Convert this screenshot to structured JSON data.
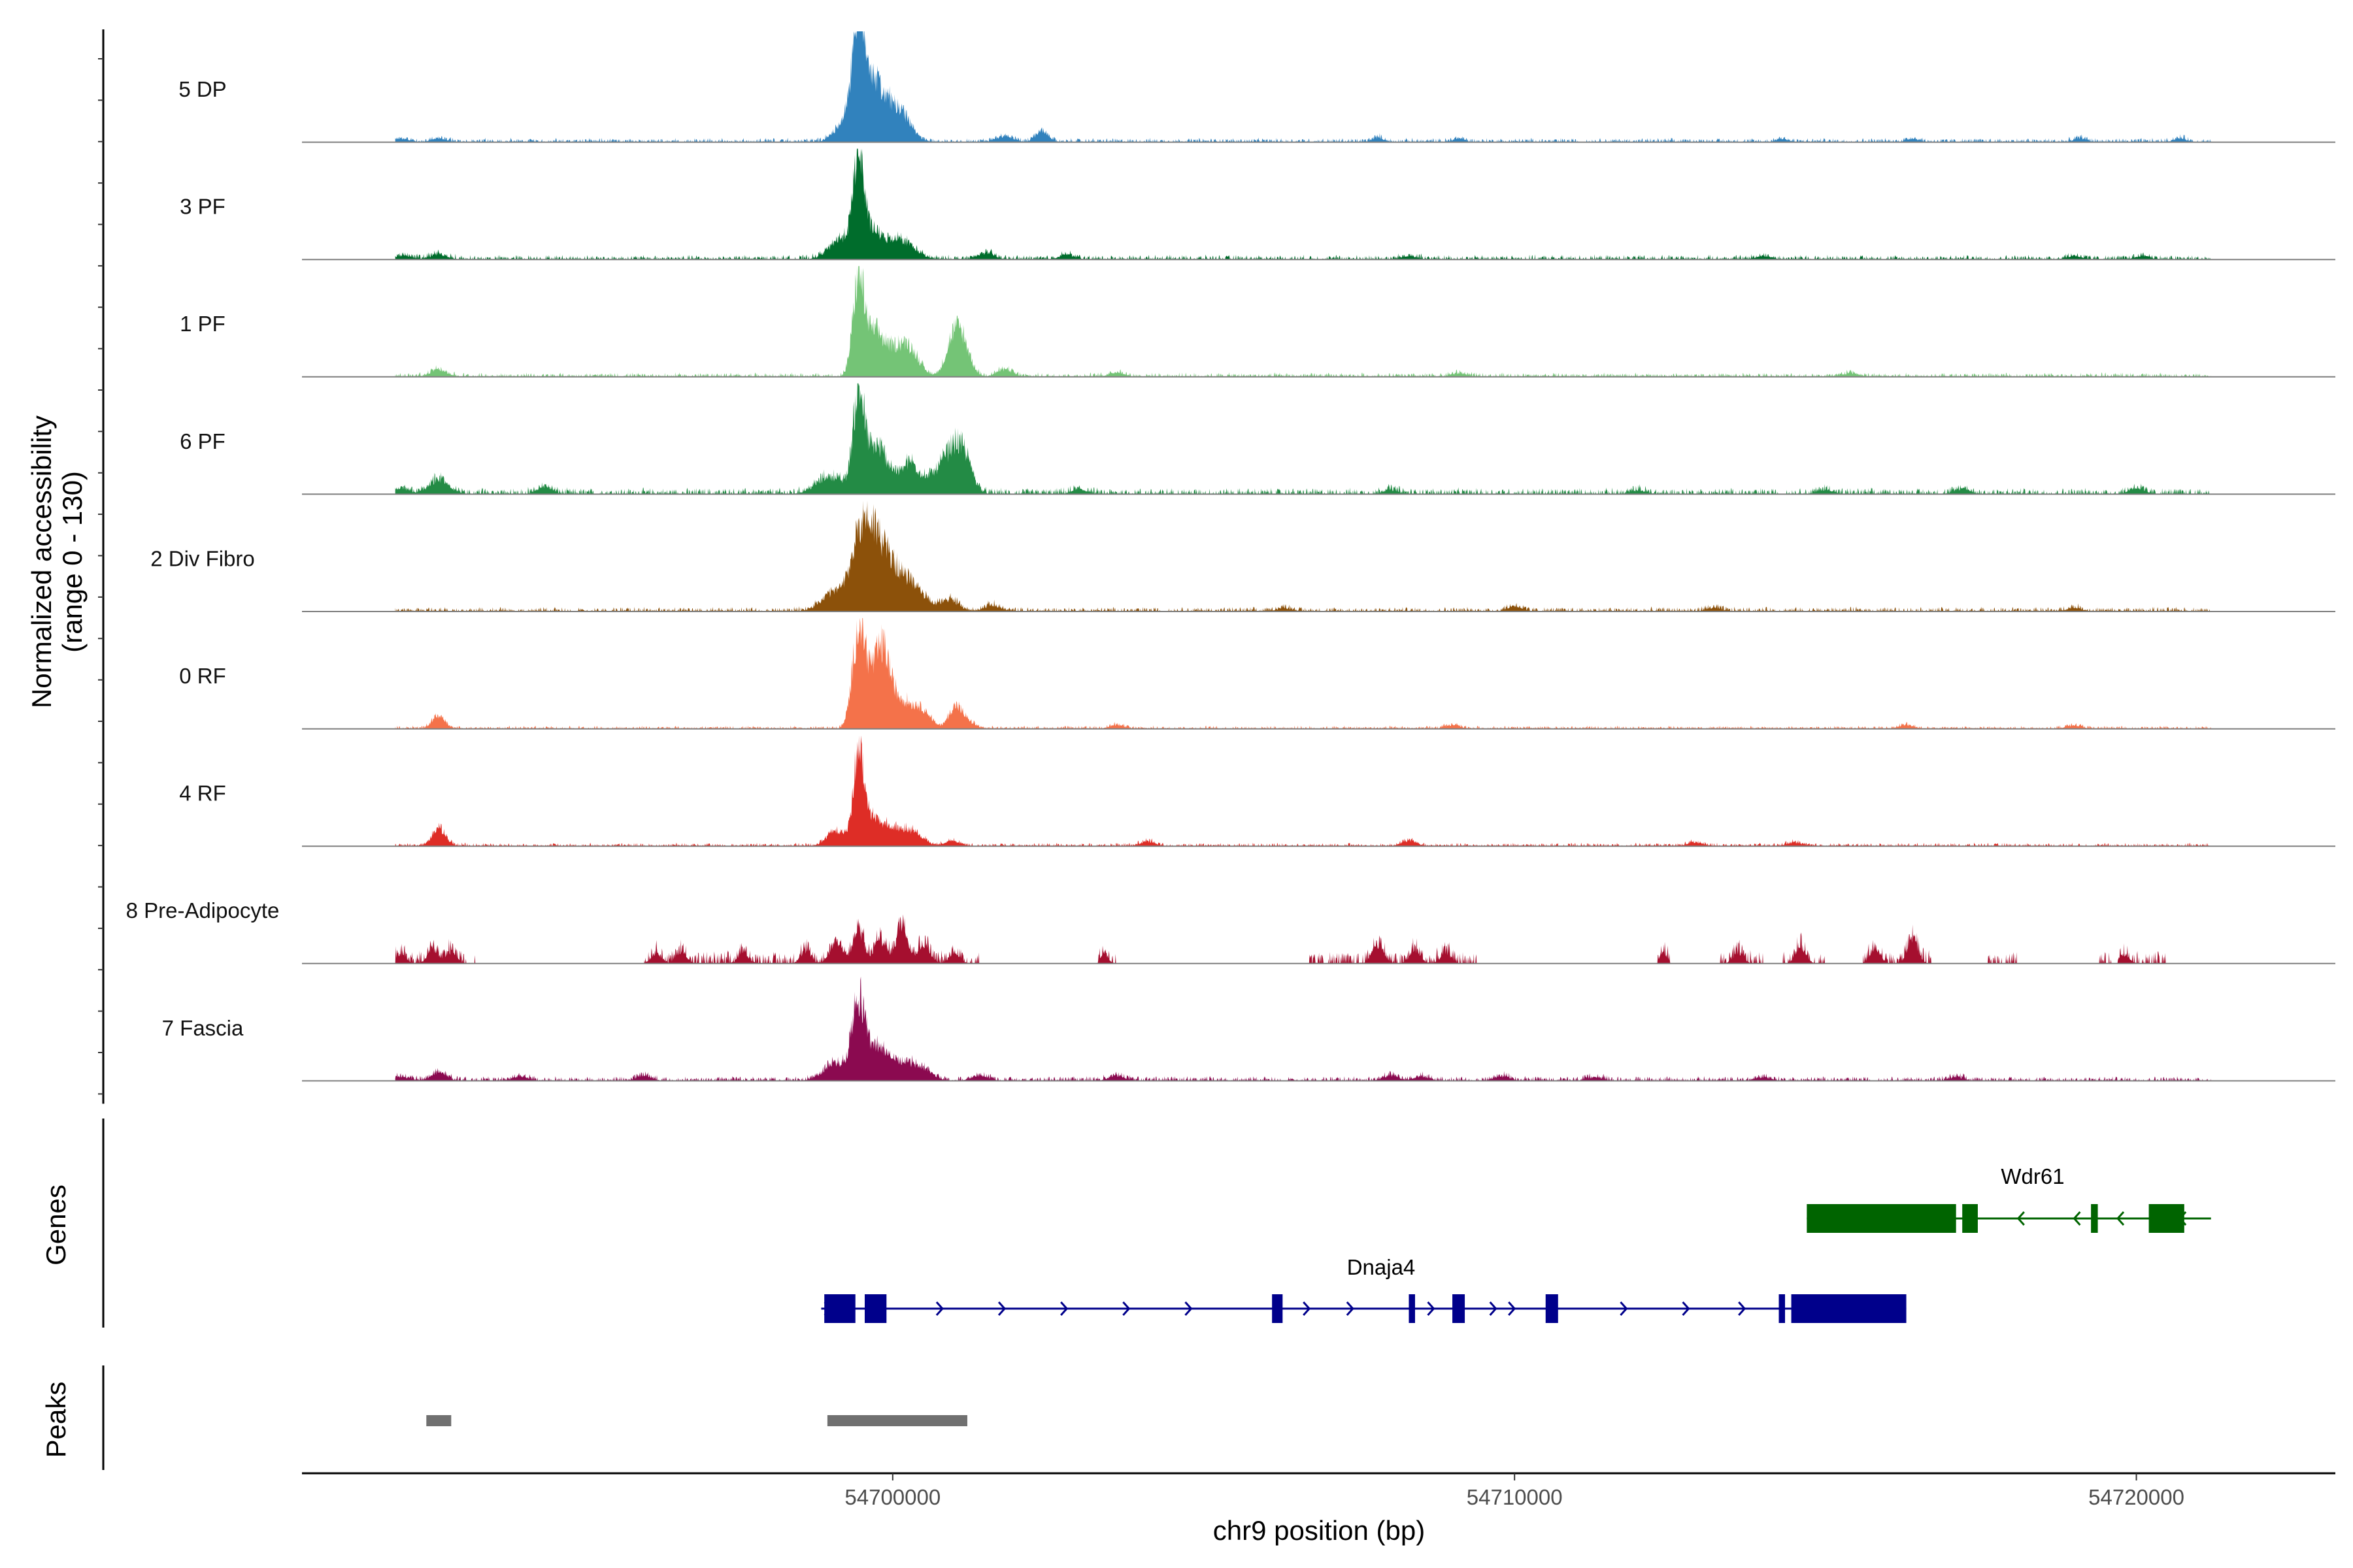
{
  "chart_data": {
    "type": "area",
    "title": "",
    "ylabel_line1": "Normalized accessibility",
    "ylabel_line2": "(range 0 - 130)",
    "ylim": [
      0,
      130
    ],
    "xlabel": "chr9 position (bp)",
    "xlim": [
      54690500,
      54723200
    ],
    "xticks": [
      54700000,
      54710000,
      54720000
    ],
    "xtick_labels": [
      "54700000",
      "54710000",
      "54720000"
    ],
    "coverage_tracks": [
      {
        "name": "5 DP",
        "color": "#3182bd",
        "peaks": [
          [
            54692100,
            4,
            120
          ],
          [
            54692700,
            4,
            120
          ],
          [
            54699300,
            30,
            180
          ],
          [
            54699450,
            120,
            90
          ],
          [
            54699650,
            60,
            160
          ],
          [
            54699950,
            35,
            200
          ],
          [
            54700200,
            15,
            150
          ],
          [
            54701800,
            7,
            130
          ],
          [
            54702400,
            12,
            100
          ],
          [
            54707800,
            5,
            90
          ],
          [
            54709100,
            4,
            90
          ],
          [
            54714300,
            4,
            90
          ],
          [
            54716400,
            4,
            100
          ],
          [
            54719100,
            4,
            100
          ],
          [
            54720700,
            4,
            100
          ]
        ],
        "noise": 2.0,
        "gaps": []
      },
      {
        "name": "3 PF",
        "color": "#006d2c",
        "peaks": [
          [
            54692100,
            4,
            150
          ],
          [
            54692700,
            6,
            130
          ],
          [
            54699200,
            25,
            200
          ],
          [
            54699450,
            110,
            80
          ],
          [
            54699650,
            30,
            150
          ],
          [
            54700100,
            24,
            220
          ],
          [
            54701500,
            7,
            130
          ],
          [
            54702800,
            5,
            120
          ],
          [
            54708300,
            4,
            120
          ],
          [
            54714000,
            4,
            120
          ],
          [
            54719000,
            4,
            120
          ],
          [
            54720100,
            4,
            120
          ]
        ],
        "noise": 2.2,
        "gaps": []
      },
      {
        "name": "1 PF",
        "color": "#74c476",
        "peaks": [
          [
            54692700,
            8,
            130
          ],
          [
            54699450,
            110,
            90
          ],
          [
            54699700,
            48,
            140
          ],
          [
            54700050,
            30,
            180
          ],
          [
            54700300,
            22,
            150
          ],
          [
            54701000,
            45,
            130
          ],
          [
            54701150,
            22,
            120
          ],
          [
            54701800,
            8,
            130
          ],
          [
            54703600,
            5,
            120
          ],
          [
            54709100,
            4,
            120
          ],
          [
            54715400,
            4,
            120
          ]
        ],
        "noise": 2.0,
        "gaps": []
      },
      {
        "name": "6 PF",
        "color": "#238b45",
        "peaks": [
          [
            54692100,
            6,
            120
          ],
          [
            54692700,
            16,
            160
          ],
          [
            54694400,
            8,
            120
          ],
          [
            54699000,
            20,
            220
          ],
          [
            54699450,
            110,
            90
          ],
          [
            54699700,
            38,
            150
          ],
          [
            54699900,
            25,
            200
          ],
          [
            54700300,
            32,
            130
          ],
          [
            54700700,
            22,
            160
          ],
          [
            54701000,
            50,
            150
          ],
          [
            54701200,
            22,
            120
          ],
          [
            54703000,
            5,
            120
          ],
          [
            54708000,
            5,
            120
          ],
          [
            54712000,
            4,
            120
          ],
          [
            54715000,
            5,
            120
          ],
          [
            54717200,
            6,
            120
          ],
          [
            54720000,
            7,
            120
          ]
        ],
        "noise": 3.0,
        "gaps": []
      },
      {
        "name": "2 Div Fibro",
        "color": "#8c510a",
        "peaks": [
          [
            54699100,
            22,
            220
          ],
          [
            54699500,
            85,
            150
          ],
          [
            54699750,
            55,
            160
          ],
          [
            54700000,
            40,
            200
          ],
          [
            54700350,
            25,
            170
          ],
          [
            54700900,
            14,
            150
          ],
          [
            54701600,
            7,
            130
          ],
          [
            54706300,
            4,
            120
          ],
          [
            54710000,
            6,
            120
          ],
          [
            54713200,
            4,
            120
          ],
          [
            54719000,
            4,
            120
          ]
        ],
        "noise": 2.2,
        "gaps": []
      },
      {
        "name": "0 RF",
        "color": "#f4724a",
        "peaks": [
          [
            54692700,
            15,
            100
          ],
          [
            54699450,
            100,
            100
          ],
          [
            54699650,
            50,
            150
          ],
          [
            54699850,
            65,
            110
          ],
          [
            54700100,
            32,
            170
          ],
          [
            54700450,
            22,
            150
          ],
          [
            54701000,
            25,
            100
          ],
          [
            54701200,
            8,
            120
          ],
          [
            54703600,
            4,
            120
          ],
          [
            54709000,
            4,
            120
          ],
          [
            54716300,
            4,
            120
          ],
          [
            54719000,
            4,
            120
          ]
        ],
        "noise": 1.5,
        "gaps": []
      },
      {
        "name": "4 RF",
        "color": "#de2d26",
        "peaks": [
          [
            54692700,
            20,
            110
          ],
          [
            54699100,
            18,
            150
          ],
          [
            54699450,
            105,
            80
          ],
          [
            54699650,
            30,
            150
          ],
          [
            54700000,
            20,
            200
          ],
          [
            54700350,
            12,
            150
          ],
          [
            54700950,
            6,
            120
          ],
          [
            54704100,
            5,
            120
          ],
          [
            54708300,
            6,
            120
          ],
          [
            54712900,
            4,
            120
          ],
          [
            54714500,
            4,
            120
          ]
        ],
        "noise": 1.6,
        "gaps": []
      },
      {
        "name": "8 Pre-Adipocyte",
        "color": "#a50f2f",
        "peaks": [
          [
            54692100,
            10,
            80
          ],
          [
            54692600,
            18,
            80
          ],
          [
            54692900,
            14,
            80
          ],
          [
            54696200,
            12,
            80
          ],
          [
            54696600,
            14,
            80
          ],
          [
            54697600,
            12,
            80
          ],
          [
            54698600,
            14,
            80
          ],
          [
            54699100,
            26,
            100
          ],
          [
            54699450,
            40,
            80
          ],
          [
            54699800,
            26,
            100
          ],
          [
            54700150,
            48,
            90
          ],
          [
            54700500,
            22,
            100
          ],
          [
            54701000,
            12,
            80
          ],
          [
            54703400,
            12,
            60
          ],
          [
            54707800,
            22,
            90
          ],
          [
            54708400,
            16,
            80
          ],
          [
            54708900,
            12,
            80
          ],
          [
            54712400,
            12,
            60
          ],
          [
            54713600,
            12,
            80
          ],
          [
            54714600,
            18,
            80
          ],
          [
            54715800,
            16,
            80
          ],
          [
            54716400,
            30,
            80
          ],
          [
            54719800,
            10,
            80
          ]
        ],
        "noise": 6.0,
        "gaps": [
          [
            54691000,
            54692000
          ],
          [
            54693300,
            54696000
          ],
          [
            54701400,
            54703300
          ],
          [
            54703600,
            54706700
          ],
          [
            54709400,
            54712300
          ],
          [
            54712500,
            54713300
          ],
          [
            54714000,
            54714300
          ],
          [
            54715000,
            54715600
          ],
          [
            54716700,
            54717600
          ],
          [
            54718100,
            54719400
          ],
          [
            54719600,
            54719700
          ],
          [
            54720500,
            54722000
          ]
        ]
      },
      {
        "name": "7 Fascia",
        "color": "#8b0a50",
        "peaks": [
          [
            54692100,
            4,
            150
          ],
          [
            54692700,
            10,
            120
          ],
          [
            54694000,
            5,
            120
          ],
          [
            54696000,
            6,
            120
          ],
          [
            54699100,
            20,
            200
          ],
          [
            54699450,
            90,
            100
          ],
          [
            54699750,
            40,
            150
          ],
          [
            54700150,
            22,
            180
          ],
          [
            54700500,
            12,
            150
          ],
          [
            54701400,
            6,
            130
          ],
          [
            54703600,
            6,
            120
          ],
          [
            54708000,
            6,
            120
          ],
          [
            54708500,
            5,
            120
          ],
          [
            54709800,
            5,
            120
          ],
          [
            54711300,
            4,
            120
          ],
          [
            54714000,
            4,
            120
          ],
          [
            54717100,
            4,
            120
          ]
        ],
        "noise": 2.2,
        "gaps": []
      }
    ],
    "genes_track": {
      "label": "Genes",
      "genes": [
        {
          "name": "Wdr61",
          "strand": "-",
          "color": "#006400",
          "start": 54714700,
          "end": 54721200,
          "exons": [
            [
              54714700,
              54717100
            ],
            [
              54717200,
              54717450
            ],
            [
              54719270,
              54719380
            ],
            [
              54720200,
              54720770
            ]
          ],
          "arrows": [
            54718100,
            54719000,
            54719700,
            54720700
          ]
        },
        {
          "name": "Dnaja4",
          "strand": "+",
          "color": "#00008b",
          "start": 54698850,
          "end": 54716300,
          "exons": [
            [
              54698900,
              54699400
            ],
            [
              54699550,
              54699900
            ],
            [
              54706100,
              54706270
            ],
            [
              54708300,
              54708400
            ],
            [
              54709000,
              54709200
            ],
            [
              54710500,
              54710700
            ],
            [
              54714250,
              54714350
            ],
            [
              54714450,
              54716300
            ]
          ],
          "arrows": [
            54699000,
            54700800,
            54701800,
            54702800,
            54703800,
            54704800,
            54706700,
            54707400,
            54708700,
            54709700,
            54710000,
            54711800,
            54712800,
            54713700
          ]
        }
      ]
    },
    "peaks_track": {
      "label": "Peaks",
      "color": "#707070",
      "regions": [
        [
          54692500,
          54692900
        ],
        [
          54698950,
          54701200
        ]
      ]
    }
  }
}
